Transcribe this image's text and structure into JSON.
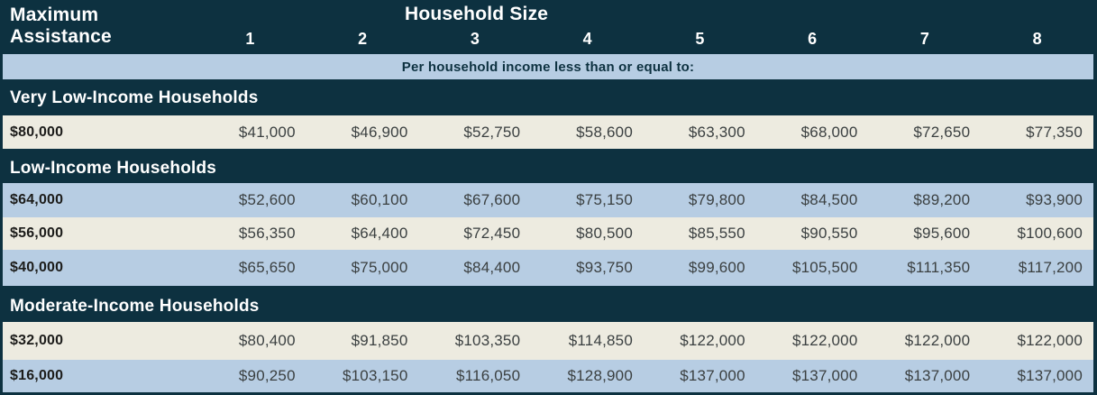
{
  "header": {
    "title_line1": "Maximum",
    "title_line2": "Assistance",
    "group_title": "Household Size",
    "columns": [
      "1",
      "2",
      "3",
      "4",
      "5",
      "6",
      "7",
      "8"
    ]
  },
  "subheader": {
    "text": "Per household income less than or equal to:"
  },
  "sections": [
    {
      "title": "Very Low-Income Households",
      "rows": [
        {
          "max_assistance": "$80,000",
          "values": [
            "$41,000",
            "$46,900",
            "$52,750",
            "$58,600",
            "$63,300",
            "$68,000",
            "$72,650",
            "$77,350"
          ]
        }
      ]
    },
    {
      "title": "Low-Income Households",
      "rows": [
        {
          "max_assistance": "$64,000",
          "values": [
            "$52,600",
            "$60,100",
            "$67,600",
            "$75,150",
            "$79,800",
            "$84,500",
            "$89,200",
            "$93,900"
          ]
        },
        {
          "max_assistance": "$56,000",
          "values": [
            "$56,350",
            "$64,400",
            "$72,450",
            "$80,500",
            "$85,550",
            "$90,550",
            "$95,600",
            "$100,600"
          ]
        },
        {
          "max_assistance": "$40,000",
          "values": [
            "$65,650",
            "$75,000",
            "$84,400",
            "$93,750",
            "$99,600",
            "$105,500",
            "$111,350",
            "$117,200"
          ]
        }
      ]
    },
    {
      "title": "Moderate-Income Households",
      "rows": [
        {
          "max_assistance": "$32,000",
          "values": [
            "$80,400",
            "$91,850",
            "$103,350",
            "$114,850",
            "$122,000",
            "$122,000",
            "$122,000",
            "$122,000"
          ]
        },
        {
          "max_assistance": "$16,000",
          "values": [
            "$90,250",
            "$103,150",
            "$116,050",
            "$128,900",
            "$137,000",
            "$137,000",
            "$137,000",
            "$137,000"
          ]
        }
      ]
    }
  ],
  "colors": {
    "dark_teal": "#0d3140",
    "light_blue": "#b7cde3",
    "cream": "#edebe0",
    "header_text": "#ffffff",
    "value_text": "#3b4041",
    "label_text": "#1c1c1a"
  }
}
